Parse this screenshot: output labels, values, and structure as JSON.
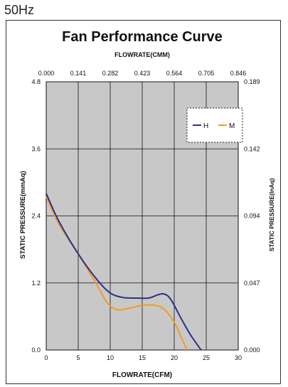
{
  "frequency_label": "50Hz",
  "chart_data": {
    "type": "line",
    "title": "Fan Performance Curve",
    "xlabel": "FLOWRATE(CFM)",
    "x2label": "FLOWRATE(CMM)",
    "ylabel": "STATIC PRESSURE(mmAq)",
    "y2label": "STATIC PRESSURE(InAq)",
    "xlim": [
      0,
      30
    ],
    "ylim": [
      0,
      4.8
    ],
    "x_ticks": [
      "0",
      "5",
      "10",
      "15",
      "20",
      "25",
      "30"
    ],
    "x2_ticks": [
      "0.000",
      "0.141",
      "0.282",
      "0.423",
      "0.564",
      "0.705",
      "0.846"
    ],
    "y_ticks": [
      "0.0",
      "1.2",
      "2.4",
      "3.6",
      "4.8"
    ],
    "y2_ticks": [
      "0.000",
      "0.047",
      "0.094",
      "0.142",
      "0.189"
    ],
    "grid": true,
    "legend_position": "top-right",
    "series": [
      {
        "name": "H",
        "color": "#2b2f8c",
        "x": [
          0,
          2,
          5,
          8,
          10,
          12,
          14,
          16,
          17.5,
          18.5,
          19.5,
          21,
          22.5,
          24.2
        ],
        "y": [
          2.8,
          2.3,
          1.72,
          1.25,
          1.02,
          0.94,
          0.93,
          0.93,
          0.99,
          1.0,
          0.9,
          0.58,
          0.28,
          0.0
        ]
      },
      {
        "name": "M",
        "color": "#f39a28",
        "x": [
          0,
          2,
          5,
          8,
          9.5,
          11,
          13,
          15,
          17,
          18.5,
          20,
          21,
          22
        ],
        "y": [
          2.75,
          2.25,
          1.72,
          1.15,
          0.85,
          0.72,
          0.75,
          0.8,
          0.8,
          0.72,
          0.5,
          0.25,
          0.0
        ]
      }
    ]
  }
}
